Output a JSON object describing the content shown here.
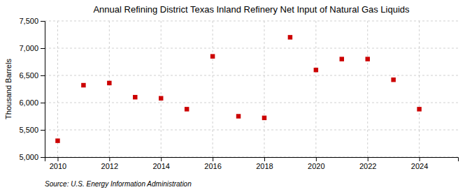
{
  "chart_data": {
    "type": "scatter",
    "title": "Annual Refining District Texas Inland Refinery Net Input of Natural Gas Liquids",
    "ylabel": "Thousand Barrels",
    "annotations": [
      "Source: U.S. Energy Information Administration"
    ],
    "x": [
      2010,
      2011,
      2012,
      2013,
      2014,
      2015,
      2016,
      2017,
      2018,
      2019,
      2020,
      2021,
      2022,
      2023,
      2024
    ],
    "values": [
      5300,
      6320,
      6360,
      6100,
      6080,
      5880,
      6850,
      5750,
      5720,
      7200,
      6600,
      6800,
      6800,
      6420,
      5880
    ],
    "color": "#cc0000",
    "marker": "square",
    "xlim": [
      2009.5,
      2025.5
    ],
    "xticks": [
      2010,
      2012,
      2014,
      2016,
      2018,
      2020,
      2022,
      2024
    ],
    "ylim": [
      5000,
      7500
    ],
    "yticks": [
      {
        "value": 5000,
        "label": "5,000"
      },
      {
        "value": 5500,
        "label": "5,500"
      },
      {
        "value": 6000,
        "label": "6,000"
      },
      {
        "value": 6500,
        "label": "6,500"
      },
      {
        "value": 7000,
        "label": "7,000"
      },
      {
        "value": 7500,
        "label": "7,500"
      }
    ],
    "grid": true
  }
}
